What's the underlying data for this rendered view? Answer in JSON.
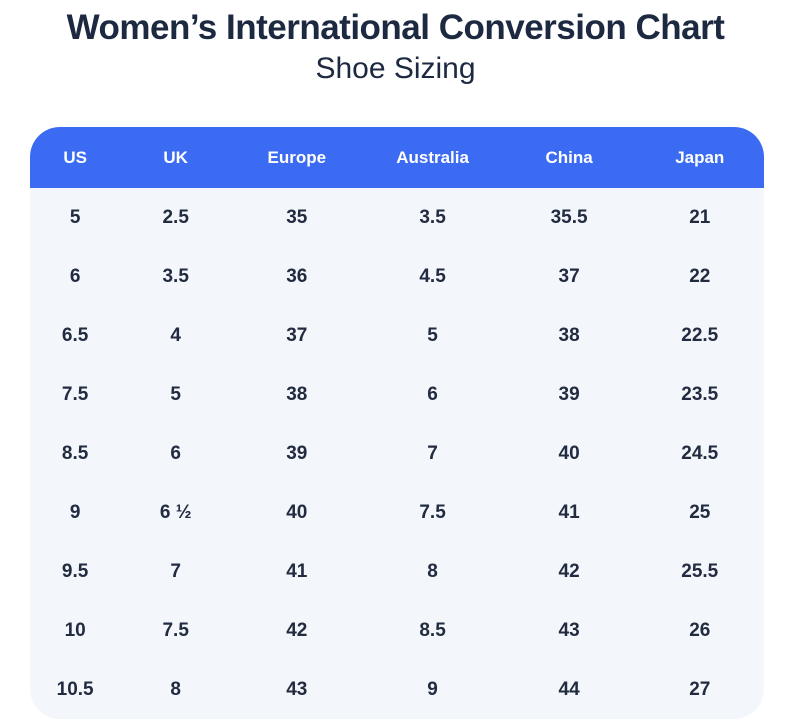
{
  "page": {
    "title": "Women’s International Conversion Chart",
    "subtitle": "Shoe Sizing"
  },
  "chart_data": {
    "type": "table",
    "title": "Women’s International Conversion Chart",
    "subtitle": "Shoe Sizing",
    "columns": [
      "US",
      "UK",
      "Europe",
      "Australia",
      "China",
      "Japan"
    ],
    "rows": [
      [
        "5",
        "2.5",
        "35",
        "3.5",
        "35.5",
        "21"
      ],
      [
        "6",
        "3.5",
        "36",
        "4.5",
        "37",
        "22"
      ],
      [
        "6.5",
        "4",
        "37",
        "5",
        "38",
        "22.5"
      ],
      [
        "7.5",
        "5",
        "38",
        "6",
        "39",
        "23.5"
      ],
      [
        "8.5",
        "6",
        "39",
        "7",
        "40",
        "24.5"
      ],
      [
        "9",
        "6 ½",
        "40",
        "7.5",
        "41",
        "25"
      ],
      [
        "9.5",
        "7",
        "41",
        "8",
        "42",
        "25.5"
      ],
      [
        "10",
        "7.5",
        "42",
        "8.5",
        "43",
        "26"
      ],
      [
        "10.5",
        "8",
        "43",
        "9",
        "44",
        "27"
      ]
    ]
  },
  "colors": {
    "header_bg": "#3B6BF2",
    "header_text": "#FFFFFF",
    "body_bg": "#F3F7FC",
    "cell_text": "#222B3F",
    "title_text": "#1D2941"
  }
}
